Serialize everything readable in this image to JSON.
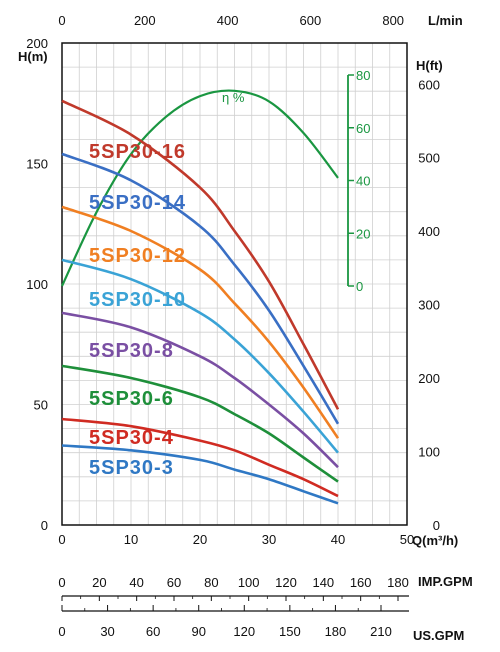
{
  "chart_data": {
    "type": "line",
    "x_axis": {
      "label": "Q(m³/h)",
      "min": 0,
      "max": 50,
      "ticks": [
        "0",
        "10",
        "20",
        "30",
        "40",
        "50"
      ]
    },
    "top_axis": {
      "label": "L/min",
      "min": 0,
      "max": 800,
      "ticks": [
        "0",
        "200",
        "400",
        "600",
        "800"
      ]
    },
    "y_axis_left": {
      "label": "H(m)",
      "min": 0,
      "max": 200,
      "ticks": [
        "0",
        "50",
        "100",
        "150",
        "200"
      ]
    },
    "y_axis_right": {
      "label": "H(ft)",
      "min": 0,
      "max": 600,
      "ticks": [
        "0",
        "100",
        "200",
        "300",
        "400",
        "500",
        "600"
      ]
    },
    "efficiency_axis": {
      "label": "η %",
      "min": 0,
      "max": 80,
      "ticks": [
        "0",
        "20",
        "40",
        "60",
        "80"
      ],
      "color": "#1a9641"
    },
    "imp_axis": {
      "label": "IMP.GPM",
      "ticks": [
        "0",
        "20",
        "40",
        "60",
        "80",
        "100",
        "120",
        "140",
        "160",
        "180"
      ]
    },
    "us_axis": {
      "label": "US.GPM",
      "ticks": [
        "0",
        "30",
        "60",
        "90",
        "120",
        "150",
        "180",
        "210"
      ]
    },
    "grid": true,
    "series": [
      {
        "name": "5SP30-16",
        "color": "#c0392b",
        "x": [
          0,
          10,
          20,
          25,
          30,
          35,
          40
        ],
        "y": [
          176,
          162,
          140,
          122,
          101,
          75,
          48
        ]
      },
      {
        "name": "5SP30-14",
        "color": "#3a6fc4",
        "x": [
          0,
          10,
          20,
          25,
          30,
          35,
          40
        ],
        "y": [
          154,
          143,
          124,
          108,
          89,
          66,
          42
        ]
      },
      {
        "name": "5SP30-12",
        "color": "#f07f22",
        "x": [
          0,
          10,
          20,
          25,
          30,
          35,
          40
        ],
        "y": [
          132,
          122,
          106,
          92,
          76,
          57,
          36
        ]
      },
      {
        "name": "5SP30-10",
        "color": "#3aa3d6",
        "x": [
          0,
          10,
          20,
          25,
          30,
          35,
          40
        ],
        "y": [
          110,
          102,
          88,
          77,
          63,
          47,
          30
        ]
      },
      {
        "name": "5SP30-8",
        "color": "#7a4fa3",
        "x": [
          0,
          10,
          20,
          25,
          30,
          35,
          40
        ],
        "y": [
          88,
          82,
          70,
          61,
          50,
          38,
          24
        ]
      },
      {
        "name": "5SP30-6",
        "color": "#1e8f3a",
        "x": [
          0,
          10,
          20,
          25,
          30,
          35,
          40
        ],
        "y": [
          66,
          61,
          53,
          46,
          38,
          28,
          18
        ]
      },
      {
        "name": "5SP30-4",
        "color": "#d02b22",
        "x": [
          0,
          10,
          20,
          25,
          30,
          35,
          40
        ],
        "y": [
          44,
          41,
          35,
          31,
          25,
          19,
          12
        ]
      },
      {
        "name": "5SP30-3",
        "color": "#2f78c4",
        "x": [
          0,
          10,
          20,
          25,
          30,
          35,
          40
        ],
        "y": [
          33,
          31,
          27,
          23,
          19,
          14,
          9
        ]
      }
    ],
    "efficiency": {
      "name": "η %",
      "color": "#1a9641",
      "x": [
        0,
        5,
        10,
        15,
        20,
        25,
        30,
        35,
        40
      ],
      "y": [
        0,
        28,
        50,
        64,
        72,
        74,
        70,
        58,
        41
      ]
    }
  }
}
